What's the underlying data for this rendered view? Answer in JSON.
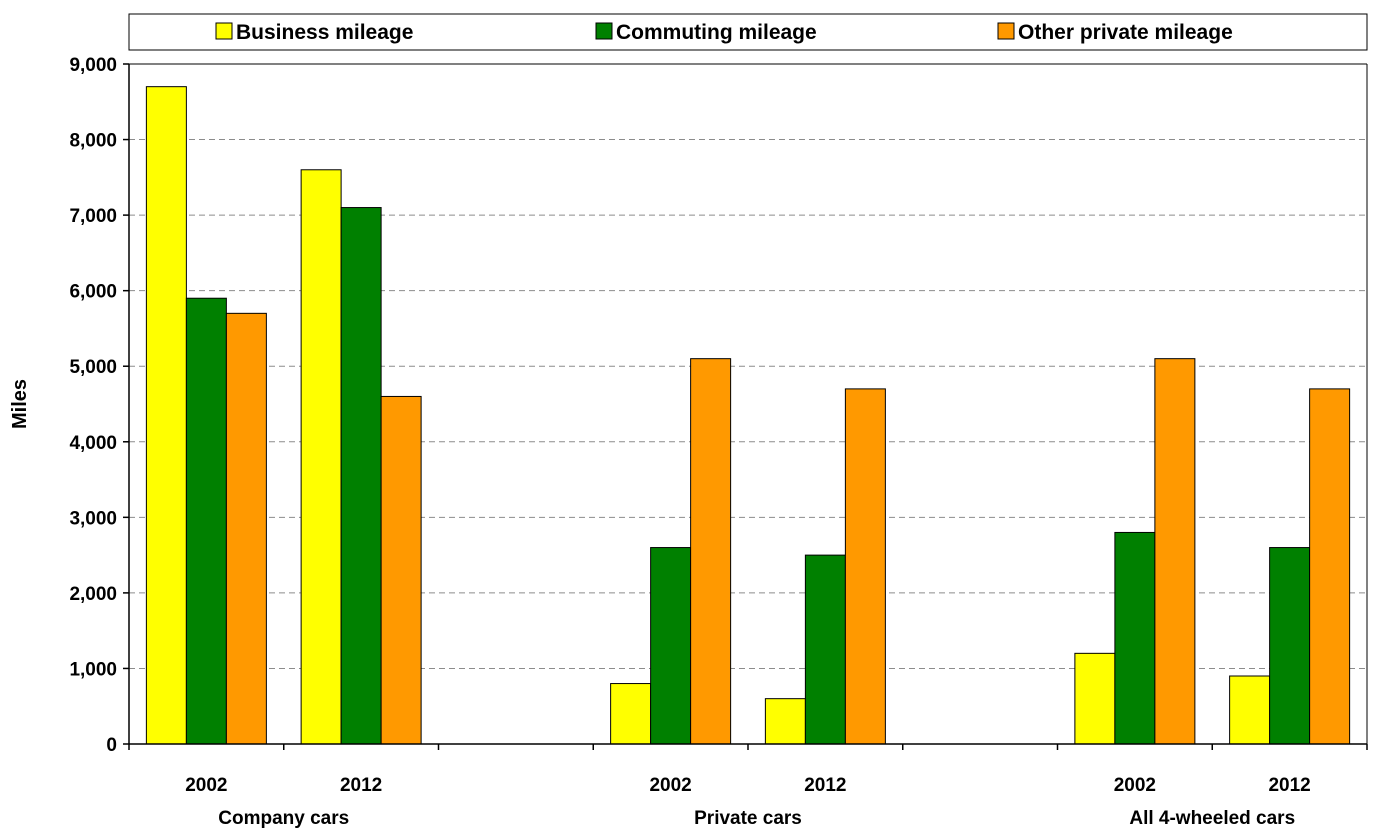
{
  "chart_data": {
    "type": "bar",
    "ylabel": "Miles",
    "ylim": [
      0,
      9000
    ],
    "yticks": [
      "0",
      "1,000",
      "2,000",
      "3,000",
      "4,000",
      "5,000",
      "6,000",
      "7,000",
      "8,000",
      "9,000"
    ],
    "grid": true,
    "legend_position": "top",
    "groups": [
      {
        "label": "Company cars",
        "categories": [
          "2002",
          "2012"
        ]
      },
      {
        "label": "Private cars",
        "categories": [
          "2002",
          "2012"
        ]
      },
      {
        "label": "All 4-wheeled cars",
        "categories": [
          "2002",
          "2012"
        ]
      }
    ],
    "series": [
      {
        "name": "Business mileage",
        "color": "#FFFF00",
        "values": [
          8700,
          7600,
          800,
          600,
          1200,
          900
        ]
      },
      {
        "name": "Commuting mileage",
        "color": "#008000",
        "values": [
          5900,
          7100,
          2600,
          2500,
          2800,
          2600
        ]
      },
      {
        "name": "Other private mileage",
        "color": "#FF9900",
        "values": [
          5700,
          4600,
          5100,
          4700,
          5100,
          4700
        ]
      }
    ]
  }
}
